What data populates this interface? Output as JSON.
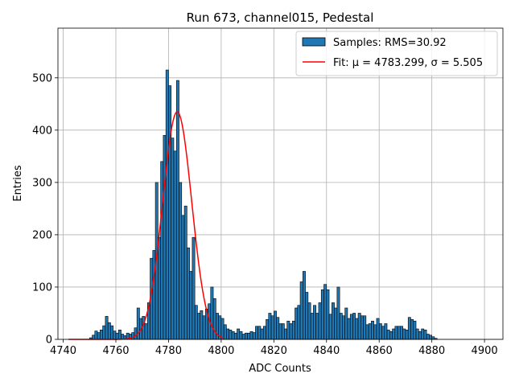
{
  "chart_data": {
    "type": "bar",
    "title": "Run 673, channel015, Pedestal",
    "xlabel": "ADC Counts",
    "ylabel": "Entries",
    "xlim": [
      4738,
      4907
    ],
    "ylim": [
      0,
      595
    ],
    "xticks": [
      4740,
      4760,
      4780,
      4800,
      4820,
      4840,
      4860,
      4880,
      4900
    ],
    "yticks": [
      0,
      100,
      200,
      300,
      400,
      500
    ],
    "grid": true,
    "legend_placement": "top-right",
    "colors": {
      "bar_fill": "#1f77b4",
      "bar_edge": "#000000",
      "fit_line": "#ff0000",
      "grid": "#b0b0b0"
    },
    "series": [
      {
        "name": "Samples: RMS=30.92",
        "kind": "histogram",
        "bin_width": 1,
        "x": [
          4750,
          4751,
          4752,
          4753,
          4754,
          4755,
          4756,
          4757,
          4758,
          4759,
          4760,
          4761,
          4762,
          4763,
          4764,
          4765,
          4766,
          4767,
          4768,
          4769,
          4770,
          4771,
          4772,
          4773,
          4774,
          4775,
          4776,
          4777,
          4778,
          4779,
          4780,
          4781,
          4782,
          4783,
          4784,
          4785,
          4786,
          4787,
          4788,
          4789,
          4790,
          4791,
          4792,
          4793,
          4794,
          4795,
          4796,
          4797,
          4798,
          4799,
          4800,
          4801,
          4802,
          4803,
          4804,
          4805,
          4806,
          4807,
          4808,
          4809,
          4810,
          4811,
          4812,
          4813,
          4814,
          4815,
          4816,
          4817,
          4818,
          4819,
          4820,
          4821,
          4822,
          4823,
          4824,
          4825,
          4826,
          4827,
          4828,
          4829,
          4830,
          4831,
          4832,
          4833,
          4834,
          4835,
          4836,
          4837,
          4838,
          4839,
          4840,
          4841,
          4842,
          4843,
          4844,
          4845,
          4846,
          4847,
          4848,
          4849,
          4850,
          4851,
          4852,
          4853,
          4854,
          4855,
          4856,
          4857,
          4858,
          4859,
          4860,
          4861,
          4862,
          4863,
          4864,
          4865,
          4866,
          4867,
          4868,
          4869,
          4870,
          4871,
          4872,
          4873,
          4874,
          4875,
          4876,
          4877,
          4878,
          4879,
          4880,
          4881,
          4882,
          4883,
          4884
        ],
        "values": [
          3,
          8,
          16,
          13,
          18,
          26,
          44,
          32,
          26,
          16,
          12,
          18,
          10,
          7,
          12,
          10,
          13,
          22,
          60,
          40,
          44,
          30,
          70,
          155,
          170,
          300,
          195,
          340,
          390,
          515,
          485,
          385,
          360,
          495,
          300,
          237,
          255,
          175,
          130,
          195,
          65,
          50,
          55,
          45,
          58,
          68,
          100,
          78,
          50,
          45,
          40,
          28,
          20,
          18,
          15,
          12,
          20,
          15,
          10,
          12,
          12,
          15,
          13,
          25,
          25,
          20,
          25,
          38,
          50,
          45,
          54,
          42,
          30,
          30,
          20,
          35,
          30,
          35,
          60,
          65,
          110,
          130,
          90,
          70,
          50,
          65,
          50,
          70,
          95,
          105,
          95,
          48,
          70,
          60,
          100,
          50,
          45,
          60,
          40,
          48,
          50,
          40,
          50,
          45,
          45,
          28,
          30,
          35,
          28,
          40,
          30,
          25,
          30,
          18,
          15,
          20,
          25,
          25,
          25,
          20,
          18,
          42,
          38,
          35,
          20,
          15,
          20,
          18,
          10,
          8,
          5,
          2,
          0,
          0,
          0
        ]
      },
      {
        "name": "Fit: μ = 4783.299, σ = 5.505",
        "kind": "gaussian",
        "mu": 4783.299,
        "sigma": 5.505,
        "amplitude": 435,
        "x_range": [
          4742,
          4801
        ]
      }
    ]
  }
}
